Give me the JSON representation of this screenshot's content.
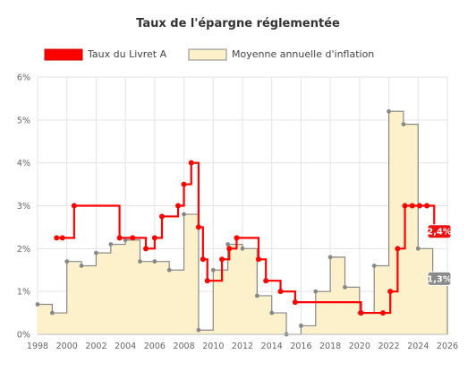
{
  "chart_data": {
    "type": "line",
    "title": "Taux de l'épargne réglementée",
    "xlim": [
      1998,
      2026
    ],
    "ylim": [
      0,
      6
    ],
    "x_ticks": [
      1998,
      2000,
      2002,
      2004,
      2006,
      2008,
      2010,
      2012,
      2014,
      2016,
      2018,
      2020,
      2022,
      2024,
      2026
    ],
    "y_ticks": [
      0,
      1,
      2,
      3,
      4,
      5,
      6
    ],
    "y_tick_labels": [
      "0%",
      "1%",
      "2%",
      "3%",
      "4%",
      "5%",
      "6%"
    ],
    "grid": true,
    "legend_position": "top",
    "series": [
      {
        "name": "Taux du Livret A",
        "kind": "step-line",
        "color": "#ff0000",
        "points": [
          [
            1999.3,
            2.25
          ],
          [
            1999.7,
            2.25
          ],
          [
            2000.5,
            3.0
          ],
          [
            2003.6,
            2.25
          ],
          [
            2004.5,
            2.25
          ],
          [
            2005.4,
            2.0
          ],
          [
            2006.0,
            2.25
          ],
          [
            2006.5,
            2.75
          ],
          [
            2007.6,
            3.0
          ],
          [
            2008.0,
            3.5
          ],
          [
            2008.5,
            4.0
          ],
          [
            2009.0,
            2.5
          ],
          [
            2009.3,
            1.75
          ],
          [
            2009.6,
            1.25
          ],
          [
            2010.6,
            1.75
          ],
          [
            2011.1,
            2.0
          ],
          [
            2011.6,
            2.25
          ],
          [
            2013.1,
            1.75
          ],
          [
            2013.6,
            1.25
          ],
          [
            2014.6,
            1.0
          ],
          [
            2015.6,
            0.75
          ],
          [
            2020.1,
            0.5
          ],
          [
            2021.6,
            0.5
          ],
          [
            2022.1,
            1.0
          ],
          [
            2022.6,
            2.0
          ],
          [
            2023.1,
            3.0
          ],
          [
            2023.6,
            3.0
          ],
          [
            2024.1,
            3.0
          ],
          [
            2024.6,
            3.0
          ],
          [
            2025.1,
            2.4
          ]
        ]
      },
      {
        "name": "Moyenne annuelle d'inflation",
        "kind": "step-area",
        "color": "#fdf1cc",
        "line_color": "#888888",
        "points": [
          [
            1998,
            0.7
          ],
          [
            1999,
            0.5
          ],
          [
            2000,
            1.7
          ],
          [
            2001,
            1.6
          ],
          [
            2002,
            1.9
          ],
          [
            2003,
            2.1
          ],
          [
            2004,
            2.2
          ],
          [
            2005,
            1.7
          ],
          [
            2006,
            1.7
          ],
          [
            2007,
            1.5
          ],
          [
            2008,
            2.8
          ],
          [
            2009,
            0.1
          ],
          [
            2010,
            1.5
          ],
          [
            2011,
            2.1
          ],
          [
            2012,
            2.0
          ],
          [
            2013,
            0.9
          ],
          [
            2014,
            0.5
          ],
          [
            2015,
            0.0
          ],
          [
            2016,
            0.2
          ],
          [
            2017,
            1.0
          ],
          [
            2018,
            1.8
          ],
          [
            2019,
            1.1
          ],
          [
            2020,
            0.5
          ],
          [
            2021,
            1.6
          ],
          [
            2022,
            5.2
          ],
          [
            2023,
            4.9
          ],
          [
            2024,
            2.0
          ],
          [
            2025,
            1.3
          ]
        ]
      }
    ],
    "annotations": [
      {
        "label": "2,4%",
        "x": 2025.1,
        "y": 2.4,
        "color": "#ee1111"
      },
      {
        "label": "1,3%",
        "x": 2025.1,
        "y": 1.3,
        "color": "#8a8a8a"
      }
    ]
  }
}
